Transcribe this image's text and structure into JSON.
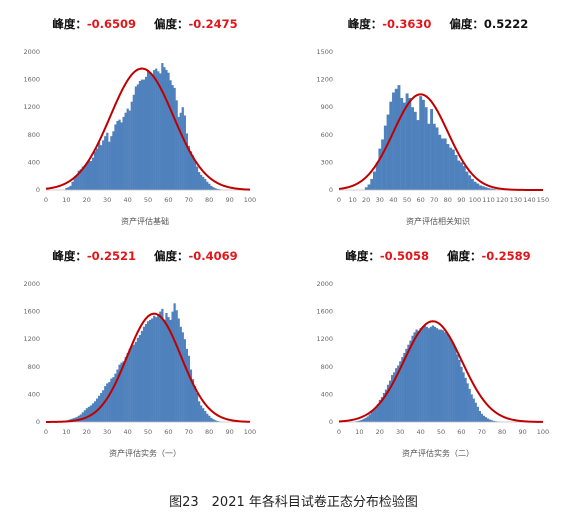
{
  "caption": "图23　2021 年各科目试卷正态分布检验图",
  "colors": {
    "bar": "#4f81bd",
    "curve": "#c00000",
    "negative_value": "#e0161b"
  },
  "chart_data": [
    {
      "type": "bar",
      "xlabel": "资产评估基础",
      "kurtosis_label": "峰度：",
      "kurtosis": "-0.6509",
      "skew_label": "偏度：",
      "skewness": "-0.2475",
      "xlim": [
        0,
        100
      ],
      "xticks": [
        0,
        10,
        20,
        30,
        40,
        50,
        60,
        70,
        80,
        90,
        100
      ],
      "ylim": [
        0,
        2000
      ],
      "yticks": [
        0,
        400,
        800,
        1200,
        1600,
        2000
      ],
      "bin_width": 1,
      "x": [
        10,
        11,
        12,
        13,
        14,
        15,
        16,
        17,
        18,
        19,
        20,
        21,
        22,
        23,
        24,
        25,
        26,
        27,
        28,
        29,
        30,
        31,
        32,
        33,
        34,
        35,
        36,
        37,
        38,
        39,
        40,
        41,
        42,
        43,
        44,
        45,
        46,
        47,
        48,
        49,
        50,
        51,
        52,
        53,
        54,
        55,
        56,
        57,
        58,
        59,
        60,
        61,
        62,
        63,
        64,
        65,
        66,
        67,
        68,
        69,
        70,
        71,
        72,
        73,
        74,
        75,
        76,
        77,
        78,
        79,
        80,
        81,
        82,
        83,
        84,
        85
      ],
      "values": [
        30,
        40,
        60,
        120,
        180,
        220,
        280,
        300,
        340,
        360,
        390,
        430,
        420,
        470,
        560,
        600,
        690,
        650,
        720,
        780,
        830,
        700,
        780,
        850,
        950,
        1000,
        1020,
        980,
        1060,
        1120,
        1180,
        1150,
        1280,
        1380,
        1500,
        1530,
        1580,
        1600,
        1600,
        1640,
        1720,
        1700,
        1680,
        1740,
        1760,
        1720,
        1690,
        1840,
        1780,
        1740,
        1700,
        1590,
        1520,
        1480,
        1300,
        1060,
        1120,
        1200,
        1080,
        820,
        640,
        560,
        500,
        420,
        340,
        260,
        220,
        190,
        160,
        120,
        90,
        60,
        40,
        25,
        15,
        10
      ],
      "normal_curve": {
        "mean": 47,
        "peak": 1760,
        "sd": 15.5
      }
    },
    {
      "type": "bar",
      "xlabel": "资产评估相关知识",
      "kurtosis_label": "峰度：",
      "kurtosis": "-0.3630",
      "skew_label": "偏度：",
      "skewness": "0.5222",
      "xlim": [
        0,
        150
      ],
      "xticks": [
        0,
        10,
        20,
        30,
        40,
        50,
        60,
        70,
        80,
        90,
        100,
        110,
        120,
        130,
        140,
        150
      ],
      "ylim": [
        0,
        1500
      ],
      "yticks": [
        0,
        300,
        600,
        900,
        1200,
        1500
      ],
      "bin_width": 2,
      "x": [
        20,
        22,
        24,
        26,
        28,
        30,
        32,
        34,
        36,
        38,
        40,
        42,
        44,
        46,
        48,
        50,
        52,
        54,
        56,
        58,
        60,
        62,
        64,
        66,
        68,
        70,
        72,
        74,
        76,
        78,
        80,
        82,
        84,
        86,
        88,
        90,
        92,
        94,
        96,
        98,
        100,
        102,
        104,
        106,
        108,
        110,
        112,
        114,
        116
      ],
      "values": [
        30,
        60,
        120,
        200,
        300,
        450,
        550,
        700,
        820,
        960,
        1060,
        1100,
        1140,
        1000,
        950,
        1050,
        1000,
        900,
        850,
        760,
        1020,
        980,
        900,
        720,
        880,
        720,
        680,
        600,
        560,
        560,
        500,
        460,
        440,
        380,
        320,
        300,
        260,
        200,
        160,
        120,
        90,
        70,
        50,
        40,
        30,
        20,
        15,
        10,
        5
      ],
      "normal_curve": {
        "mean": 60,
        "peak": 1040,
        "sd": 20
      }
    },
    {
      "type": "bar",
      "xlabel": "资产评估实务（一）",
      "kurtosis_label": "峰度：",
      "kurtosis": "-0.2521",
      "skew_label": "偏度：",
      "skewness": "-0.4069",
      "xlim": [
        0,
        100
      ],
      "xticks": [
        0,
        10,
        20,
        30,
        40,
        50,
        60,
        70,
        80,
        90,
        100
      ],
      "ylim": [
        0,
        2000
      ],
      "yticks": [
        0,
        400,
        800,
        1200,
        1600,
        2000
      ],
      "bin_width": 1,
      "x": [
        5,
        6,
        7,
        8,
        9,
        10,
        11,
        12,
        13,
        14,
        15,
        16,
        17,
        18,
        19,
        20,
        21,
        22,
        23,
        24,
        25,
        26,
        27,
        28,
        29,
        30,
        31,
        32,
        33,
        34,
        35,
        36,
        37,
        38,
        39,
        40,
        41,
        42,
        43,
        44,
        45,
        46,
        47,
        48,
        49,
        50,
        51,
        52,
        53,
        54,
        55,
        56,
        57,
        58,
        59,
        60,
        61,
        62,
        63,
        64,
        65,
        66,
        67,
        68,
        69,
        70,
        71,
        72,
        73,
        74,
        75,
        76,
        77,
        78,
        79,
        80,
        81,
        82,
        83,
        84,
        85
      ],
      "values": [
        2,
        4,
        6,
        10,
        15,
        22,
        30,
        40,
        50,
        60,
        70,
        90,
        110,
        140,
        170,
        200,
        220,
        240,
        270,
        300,
        340,
        380,
        420,
        460,
        520,
        560,
        580,
        630,
        650,
        700,
        760,
        830,
        860,
        880,
        940,
        1000,
        1060,
        1100,
        1120,
        1160,
        1220,
        1260,
        1320,
        1380,
        1420,
        1460,
        1480,
        1500,
        1540,
        1520,
        1560,
        1600,
        1640,
        1480,
        1580,
        1520,
        1480,
        1600,
        1720,
        1620,
        1500,
        1380,
        1300,
        1200,
        1060,
        960,
        760,
        620,
        520,
        420,
        300,
        240,
        200,
        160,
        120,
        90,
        60,
        40,
        25,
        15,
        8
      ],
      "normal_curve": {
        "mean": 53,
        "peak": 1570,
        "sd": 13.2
      }
    },
    {
      "type": "bar",
      "xlabel": "资产评估实务（二）",
      "kurtosis_label": "峰度：",
      "kurtosis": "-0.5058",
      "skew_label": "偏度：",
      "skewness": "-0.2589",
      "xlim": [
        0,
        100
      ],
      "xticks": [
        0,
        10,
        20,
        30,
        40,
        50,
        60,
        70,
        80,
        90,
        100
      ],
      "ylim": [
        0,
        2000
      ],
      "yticks": [
        0,
        400,
        800,
        1200,
        1600,
        2000
      ],
      "bin_width": 1,
      "x": [
        8,
        9,
        10,
        11,
        12,
        13,
        14,
        15,
        16,
        17,
        18,
        19,
        20,
        21,
        22,
        23,
        24,
        25,
        26,
        27,
        28,
        29,
        30,
        31,
        32,
        33,
        34,
        35,
        36,
        37,
        38,
        39,
        40,
        41,
        42,
        43,
        44,
        45,
        46,
        47,
        48,
        49,
        50,
        51,
        52,
        53,
        54,
        55,
        56,
        57,
        58,
        59,
        60,
        61,
        62,
        63,
        64,
        65,
        66,
        67,
        68,
        69,
        70,
        71,
        72,
        73,
        74,
        75,
        76,
        77,
        78,
        79,
        80,
        81,
        82
      ],
      "values": [
        8,
        12,
        20,
        30,
        45,
        60,
        80,
        110,
        150,
        180,
        220,
        260,
        320,
        360,
        420,
        470,
        540,
        600,
        680,
        720,
        780,
        820,
        880,
        940,
        1000,
        1060,
        1120,
        1180,
        1250,
        1300,
        1340,
        1320,
        1360,
        1380,
        1400,
        1380,
        1360,
        1380,
        1400,
        1380,
        1360,
        1340,
        1340,
        1330,
        1300,
        1280,
        1240,
        1200,
        1150,
        1080,
        980,
        900,
        800,
        720,
        640,
        560,
        480,
        400,
        340,
        280,
        220,
        160,
        120,
        90,
        70,
        50,
        35,
        25,
        15,
        10,
        6,
        4,
        3,
        2,
        1
      ],
      "normal_curve": {
        "mean": 46,
        "peak": 1460,
        "sd": 14.2
      }
    }
  ]
}
